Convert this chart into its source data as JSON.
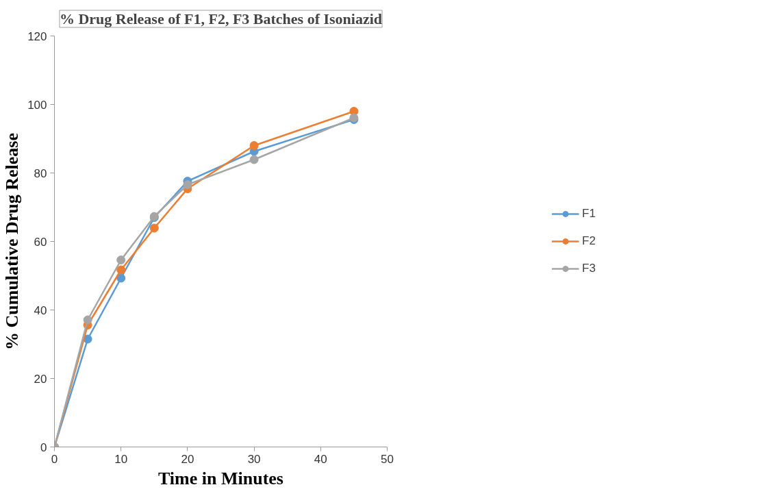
{
  "chart_data": {
    "type": "line",
    "title": "% Drug Release of F1, F2, F3 Batches of Isoniazid",
    "xlabel": "Time in Minutes",
    "ylabel": "% Cumulative Drug Release",
    "x": [
      0,
      5,
      10,
      15,
      20,
      30,
      45
    ],
    "series": [
      {
        "name": "F1",
        "color": "#5b9bd5",
        "values": [
          0,
          31.5,
          49.3,
          67,
          77.6,
          86.3,
          95.6
        ]
      },
      {
        "name": "F2",
        "color": "#ed7d31",
        "values": [
          0,
          35.6,
          51.7,
          63.9,
          75.4,
          88,
          98
        ]
      },
      {
        "name": "F3",
        "color": "#a5a5a5",
        "values": [
          0,
          37.1,
          54.6,
          67.3,
          76.6,
          83.9,
          96.1
        ]
      }
    ],
    "xlim": [
      0,
      50
    ],
    "xticks": [
      0,
      10,
      20,
      30,
      40,
      50
    ],
    "ylim": [
      0,
      120
    ],
    "yticks": [
      0,
      20,
      40,
      60,
      80,
      100,
      120
    ],
    "grid": false,
    "legend": "right",
    "marker": "circle",
    "line_style": "solid"
  }
}
